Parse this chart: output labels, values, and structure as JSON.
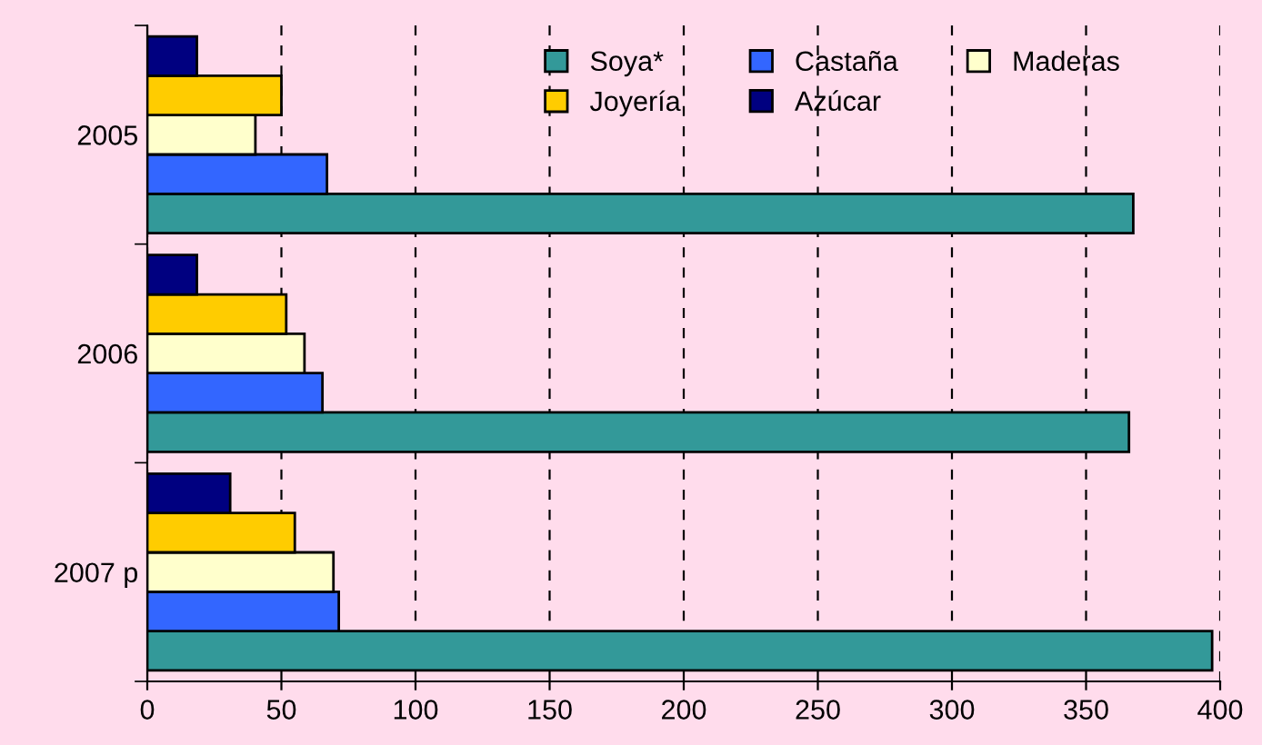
{
  "chart_data": {
    "type": "bar",
    "orientation": "horizontal",
    "categories": [
      "2005",
      "2006",
      "2007 p"
    ],
    "series": [
      {
        "name": "Soya*",
        "color": "#339999",
        "values": [
          367.6,
          366,
          397
        ]
      },
      {
        "name": "Castaña",
        "color": "#3366ff",
        "values": [
          67,
          65.3,
          71.4
        ]
      },
      {
        "name": "Maderas",
        "color": "#ffffcc",
        "values": [
          40.3,
          58.6,
          69.4
        ]
      },
      {
        "name": "Joyería",
        "color": "#ffcc00",
        "values": [
          50,
          51.8,
          55
        ]
      },
      {
        "name": "Azúcar",
        "color": "#000080",
        "values": [
          18.5,
          18.5,
          30.9
        ]
      }
    ],
    "xlim": [
      0,
      400
    ],
    "xticks": [
      0,
      50,
      100,
      150,
      200,
      250,
      300,
      350,
      400
    ],
    "grid": "x",
    "legend": "top right"
  }
}
